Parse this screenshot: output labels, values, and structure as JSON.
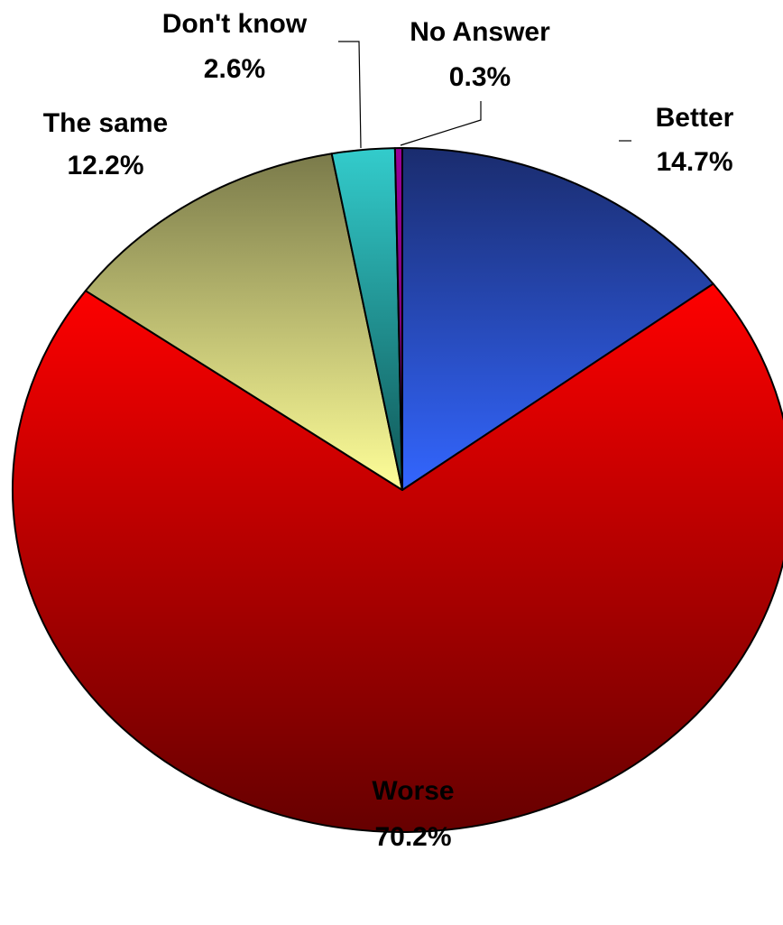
{
  "chart_data": {
    "type": "pie",
    "title": "",
    "slices": [
      {
        "label": "Better",
        "value": 14.7,
        "value_label": "14.7%",
        "color_top": "#1a2c6e",
        "color_bottom": "#3366ff"
      },
      {
        "label": "Worse",
        "value": 70.2,
        "value_label": "70.2%",
        "color_top": "#ff0000",
        "color_bottom": "#660000"
      },
      {
        "label": "The same",
        "value": 12.2,
        "value_label": "12.2%",
        "color_top": "#7a7a4a",
        "color_bottom": "#ffff99"
      },
      {
        "label": "Don't know",
        "value": 2.6,
        "value_label": "2.6%",
        "color_top": "#33cccc",
        "color_bottom": "#0f5555"
      },
      {
        "label": "No Answer",
        "value": 0.3,
        "value_label": "0.3%",
        "color_top": "#990099",
        "color_bottom": "#660066"
      }
    ],
    "start": "12 o'clock",
    "direction": "clockwise",
    "legend": "none (leader-line labels)"
  }
}
